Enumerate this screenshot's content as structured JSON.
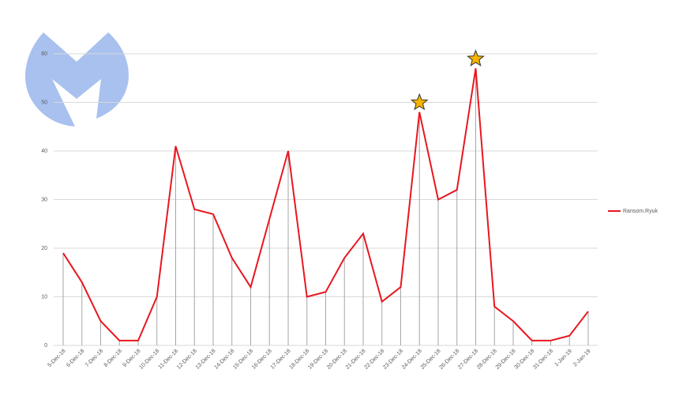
{
  "chart_data": {
    "type": "line",
    "categories": [
      "5-Dec-18",
      "6-Dec-18",
      "7-Dec-18",
      "8-Dec-18",
      "9-Dec-18",
      "10-Dec-18",
      "11-Dec-18",
      "12-Dec-18",
      "13-Dec-18",
      "14-Dec-18",
      "15-Dec-18",
      "16-Dec-18",
      "17-Dec-18",
      "18-Dec-18",
      "19-Dec-18",
      "20-Dec-18",
      "21-Dec-18",
      "22-Dec-18",
      "23-Dec-18",
      "24-Dec-18",
      "25-Dec-18",
      "26-Dec-18",
      "27-Dec-18",
      "28-Dec-18",
      "29-Dec-18",
      "30-Dec-18",
      "31-Dec-18",
      "1-Jan-19",
      "2-Jan-19"
    ],
    "series": [
      {
        "name": "Ransom.Ryuk",
        "color": "#e8171f",
        "values": [
          19,
          13,
          5,
          1,
          1,
          10,
          41,
          28,
          27,
          18,
          12,
          26,
          40,
          10,
          11,
          18,
          23,
          9,
          12,
          48,
          30,
          32,
          57,
          8,
          5,
          1,
          1,
          2,
          7
        ]
      }
    ],
    "ylim": [
      0,
      60
    ],
    "yticks": [
      0,
      10,
      20,
      30,
      40,
      50,
      60
    ],
    "grid": true,
    "drop_lines": true,
    "starred": [
      "24-Dec-18",
      "27-Dec-18"
    ],
    "legend": "right"
  }
}
